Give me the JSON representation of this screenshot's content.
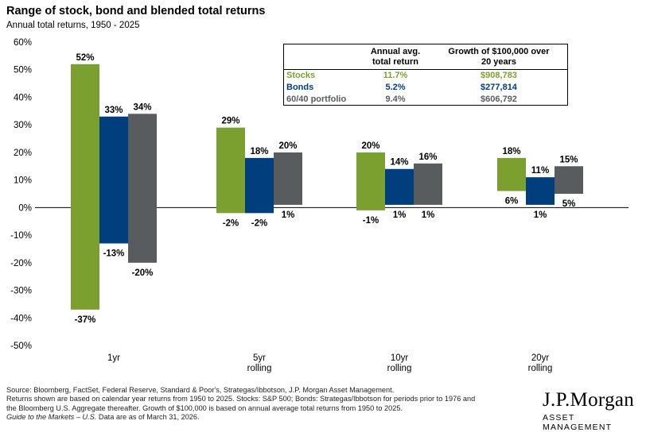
{
  "header": {
    "title": "Range of stock, bond and blended total returns",
    "subtitle": "Annual total returns, 1950 - 2025"
  },
  "legend_table": {
    "col1_line1": "Annual avg.",
    "col1_line2": "total return",
    "col2_line1": "Growth of $100,000 over",
    "col2_line2": "20 years",
    "rows": [
      {
        "name": "Stocks",
        "avg": "11.7%",
        "growth": "$908,783",
        "color": "#7ba02f"
      },
      {
        "name": "Bonds",
        "avg": "5.2%",
        "growth": "$277,814",
        "color": "#003e7e"
      },
      {
        "name": "60/40 portfolio",
        "avg": "9.4%",
        "growth": "$606,792",
        "color": "#595c5f"
      }
    ]
  },
  "chart_data": {
    "type": "bar",
    "subtype": "floating-range",
    "ylim": [
      -50,
      60
    ],
    "yticks": [
      -50,
      -40,
      -30,
      -20,
      -10,
      0,
      10,
      20,
      30,
      40,
      50,
      60
    ],
    "ytick_labels": [
      "-50%",
      "-40%",
      "-30%",
      "-20%",
      "-10%",
      "0%",
      "10%",
      "20%",
      "30%",
      "40%",
      "50%",
      "60%"
    ],
    "categories": [
      [
        "1yr"
      ],
      [
        "5yr",
        "rolling"
      ],
      [
        "10yr",
        "rolling"
      ],
      [
        "20yr",
        "rolling"
      ]
    ],
    "series": [
      {
        "name": "Stocks",
        "color": "#7ba02f",
        "high": [
          52,
          29,
          20,
          18
        ],
        "low": [
          -37,
          -2,
          -1,
          6
        ],
        "high_labels": [
          "52%",
          "29%",
          "20%",
          "18%"
        ],
        "low_labels": [
          "-37%",
          "-2%",
          "-1%",
          "6%"
        ]
      },
      {
        "name": "Bonds",
        "color": "#003e7e",
        "high": [
          33,
          18,
          14,
          11
        ],
        "low": [
          -13,
          -2,
          1,
          1
        ],
        "high_labels": [
          "33%",
          "18%",
          "14%",
          "11%"
        ],
        "low_labels": [
          "-13%",
          "-2%",
          "1%",
          "1%"
        ]
      },
      {
        "name": "60/40 portfolio",
        "color": "#595c5f",
        "high": [
          34,
          20,
          16,
          15
        ],
        "low": [
          -20,
          1,
          1,
          5
        ],
        "high_labels": [
          "34%",
          "20%",
          "16%",
          "15%"
        ],
        "low_labels": [
          "-20%",
          "1%",
          "1%",
          "5%"
        ]
      }
    ]
  },
  "footer": {
    "line1": "Source: Bloomberg, FactSet, Federal Reserve, Standard & Poor's, Strategas/Ibbotson, J.P. Morgan Asset Management.",
    "line2": "Returns shown are based on calendar year returns from 1950 to 2025. Stocks: S&P 500; Bonds: Strategas/Ibbotson for periods prior to 1976 and",
    "line3": "the Bloomberg U.S. Aggregate thereafter. Growth of $100,000 is based on annual average total returns from 1950 to 2025.",
    "line4_italic": "Guide to the Markets – U.S.",
    "line4_rest": " Data are as of March 31, 2026."
  },
  "logo": {
    "brand": "J.P.Morgan",
    "sub": "ASSET MANAGEMENT"
  }
}
